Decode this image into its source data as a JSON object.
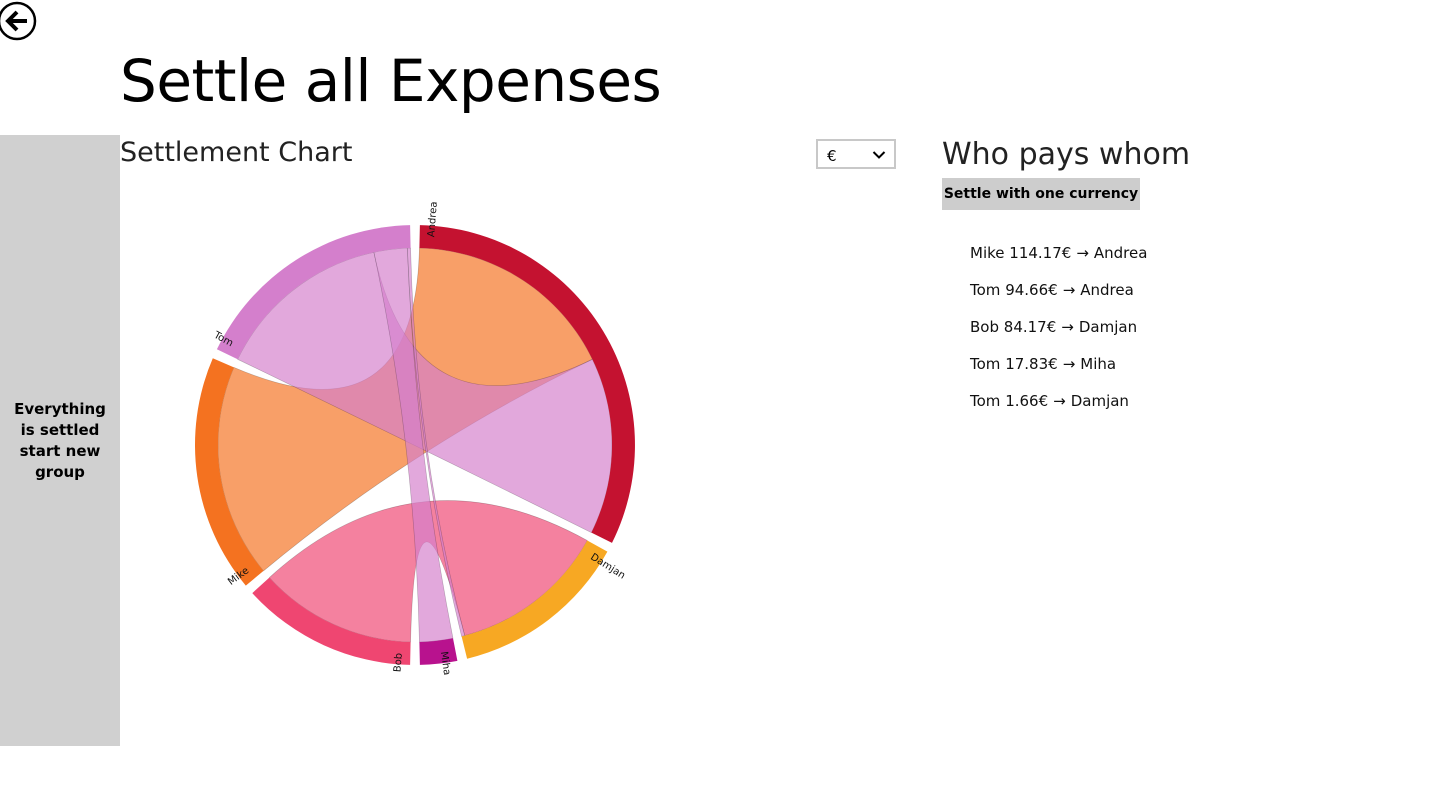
{
  "page": {
    "title": "Settle all Expenses"
  },
  "side_panel": {
    "message": "Everything is settled start new group"
  },
  "chart_section": {
    "title": "Settlement Chart"
  },
  "currency": {
    "selected": "€"
  },
  "payments_section": {
    "title": "Who pays whom",
    "settle_button_label": "Settle with one currency",
    "payments": [
      {
        "from": "Mike",
        "amount": "114.17€",
        "arrow": "→",
        "to": "Andrea"
      },
      {
        "from": "Tom",
        "amount": "94.66€",
        "arrow": "→",
        "to": "Andrea"
      },
      {
        "from": "Bob",
        "amount": "84.17€",
        "arrow": "→",
        "to": "Damjan"
      },
      {
        "from": "Tom",
        "amount": "17.83€",
        "arrow": "→",
        "to": "Miha"
      },
      {
        "from": "Tom",
        "amount": "1.66€",
        "arrow": "→",
        "to": "Damjan"
      }
    ]
  },
  "chart_data": {
    "type": "chord",
    "groups": [
      {
        "name": "Andrea",
        "color": "#c41230"
      },
      {
        "name": "Damjan",
        "color": "#f7a823"
      },
      {
        "name": "Miha",
        "color": "#b8128e"
      },
      {
        "name": "Bob",
        "color": "#ef4671"
      },
      {
        "name": "Mike",
        "color": "#f47220"
      },
      {
        "name": "Tom",
        "color": "#d47fcc"
      }
    ],
    "flows": [
      {
        "from": "Mike",
        "to": "Andrea",
        "value": 114.17
      },
      {
        "from": "Tom",
        "to": "Andrea",
        "value": 94.66
      },
      {
        "from": "Bob",
        "to": "Damjan",
        "value": 84.17
      },
      {
        "from": "Tom",
        "to": "Miha",
        "value": 17.83
      },
      {
        "from": "Tom",
        "to": "Damjan",
        "value": 1.66
      }
    ]
  }
}
